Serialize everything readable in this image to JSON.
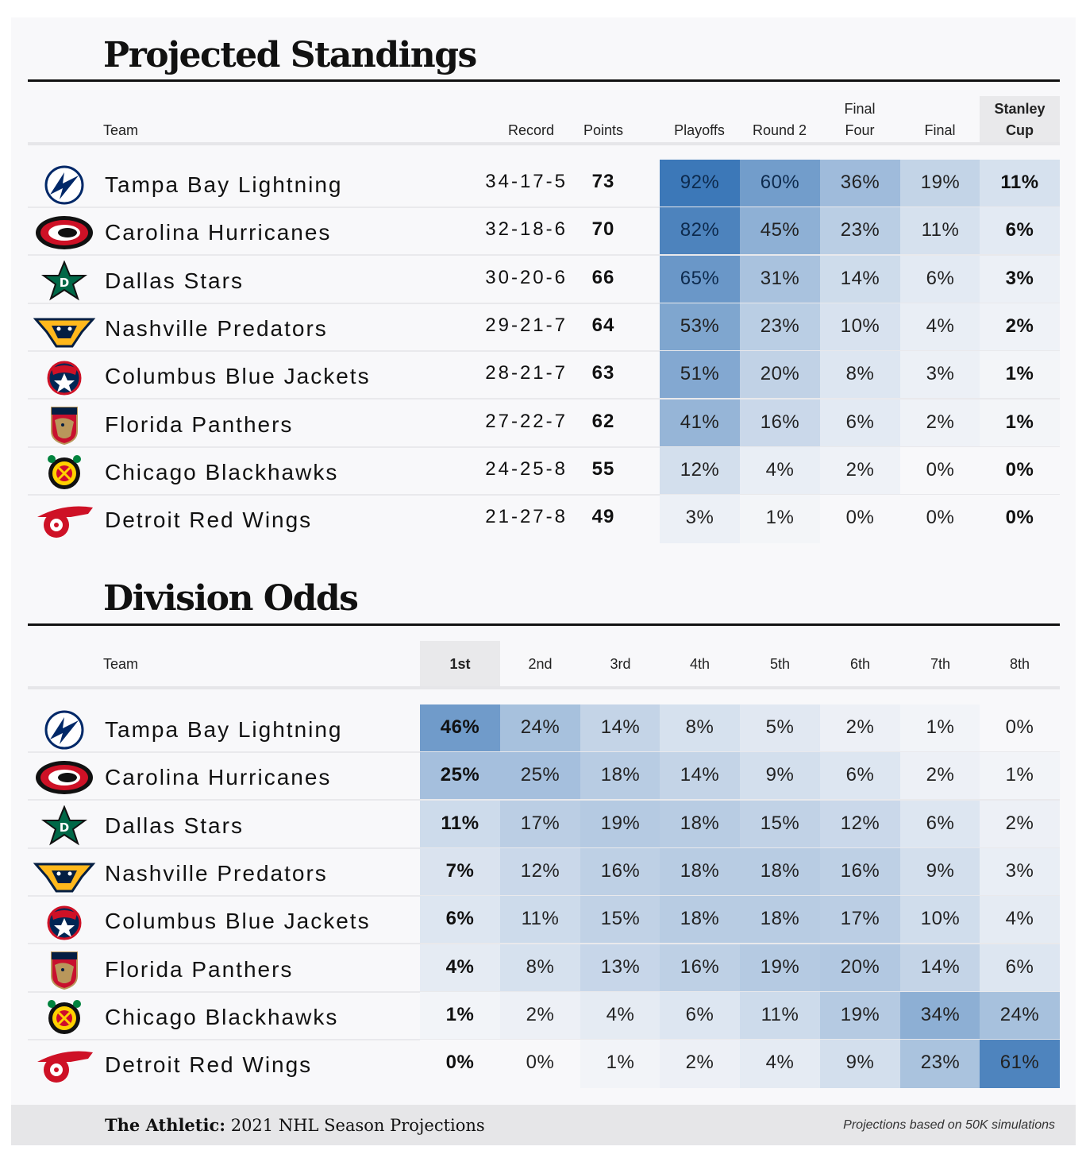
{
  "standings": {
    "title": "Projected Standings",
    "headers": {
      "team": "Team",
      "record": "Record",
      "points": "Points",
      "playoffs": "Playoffs",
      "round2": "Round 2",
      "finalfour_line1": "Final",
      "finalfour_line2": "Four",
      "final": "Final",
      "cup_line1": "Stanley",
      "cup_line2": "Cup"
    },
    "rows": [
      {
        "team": "Tampa Bay Lightning",
        "logo": "lightning-logo-icon",
        "record": "34-17-5",
        "points": "73",
        "playoffs": "92%",
        "round2": "60%",
        "finalfour": "36%",
        "final": "19%",
        "cup": "11%"
      },
      {
        "team": "Carolina Hurricanes",
        "logo": "hurricanes-logo-icon",
        "record": "32-18-6",
        "points": "70",
        "playoffs": "82%",
        "round2": "45%",
        "finalfour": "23%",
        "final": "11%",
        "cup": "6%"
      },
      {
        "team": "Dallas Stars",
        "logo": "stars-logo-icon",
        "record": "30-20-6",
        "points": "66",
        "playoffs": "65%",
        "round2": "31%",
        "finalfour": "14%",
        "final": "6%",
        "cup": "3%"
      },
      {
        "team": "Nashville Predators",
        "logo": "predators-logo-icon",
        "record": "29-21-7",
        "points": "64",
        "playoffs": "53%",
        "round2": "23%",
        "finalfour": "10%",
        "final": "4%",
        "cup": "2%"
      },
      {
        "team": "Columbus Blue Jackets",
        "logo": "blue-jackets-logo-icon",
        "record": "28-21-7",
        "points": "63",
        "playoffs": "51%",
        "round2": "20%",
        "finalfour": "8%",
        "final": "3%",
        "cup": "1%"
      },
      {
        "team": "Florida Panthers",
        "logo": "panthers-logo-icon",
        "record": "27-22-7",
        "points": "62",
        "playoffs": "41%",
        "round2": "16%",
        "finalfour": "6%",
        "final": "2%",
        "cup": "1%"
      },
      {
        "team": "Chicago Blackhawks",
        "logo": "blackhawks-logo-icon",
        "record": "24-25-8",
        "points": "55",
        "playoffs": "12%",
        "round2": "4%",
        "finalfour": "2%",
        "final": "0%",
        "cup": "0%"
      },
      {
        "team": "Detroit Red Wings",
        "logo": "red-wings-logo-icon",
        "record": "21-27-8",
        "points": "49",
        "playoffs": "3%",
        "round2": "1%",
        "finalfour": "0%",
        "final": "0%",
        "cup": "0%"
      }
    ]
  },
  "division": {
    "title": "Division Odds",
    "headers": {
      "team": "Team",
      "places": [
        "1st",
        "2nd",
        "3rd",
        "4th",
        "5th",
        "6th",
        "7th",
        "8th"
      ]
    },
    "rows": [
      {
        "team": "Tampa Bay Lightning",
        "logo": "lightning-logo-icon",
        "odds": [
          "46%",
          "24%",
          "14%",
          "8%",
          "5%",
          "2%",
          "1%",
          "0%"
        ]
      },
      {
        "team": "Carolina Hurricanes",
        "logo": "hurricanes-logo-icon",
        "odds": [
          "25%",
          "25%",
          "18%",
          "14%",
          "9%",
          "6%",
          "2%",
          "1%"
        ]
      },
      {
        "team": "Dallas Stars",
        "logo": "stars-logo-icon",
        "odds": [
          "11%",
          "17%",
          "19%",
          "18%",
          "15%",
          "12%",
          "6%",
          "2%"
        ]
      },
      {
        "team": "Nashville Predators",
        "logo": "predators-logo-icon",
        "odds": [
          "7%",
          "12%",
          "16%",
          "18%",
          "18%",
          "16%",
          "9%",
          "3%"
        ]
      },
      {
        "team": "Columbus Blue Jackets",
        "logo": "blue-jackets-logo-icon",
        "odds": [
          "6%",
          "11%",
          "15%",
          "18%",
          "18%",
          "17%",
          "10%",
          "4%"
        ]
      },
      {
        "team": "Florida Panthers",
        "logo": "panthers-logo-icon",
        "odds": [
          "4%",
          "8%",
          "13%",
          "16%",
          "19%",
          "20%",
          "14%",
          "6%"
        ]
      },
      {
        "team": "Chicago Blackhawks",
        "logo": "blackhawks-logo-icon",
        "odds": [
          "1%",
          "2%",
          "4%",
          "6%",
          "11%",
          "19%",
          "34%",
          "24%"
        ]
      },
      {
        "team": "Detroit Red Wings",
        "logo": "red-wings-logo-icon",
        "odds": [
          "0%",
          "0%",
          "1%",
          "2%",
          "4%",
          "9%",
          "23%",
          "61%"
        ]
      }
    ]
  },
  "footer": {
    "brand": "The Athletic:",
    "subtitle": "2021 NHL Season Projections",
    "note": "Projections based on 50K simulations"
  },
  "colors": {
    "heat_max": "#2f6fb3",
    "heat_min": "#f8f8fa",
    "header_highlight": "#e9e9eb"
  }
}
